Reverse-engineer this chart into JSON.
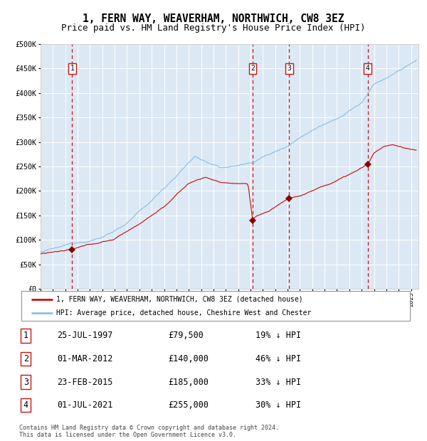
{
  "title": "1, FERN WAY, WEAVERHAM, NORTHWICH, CW8 3EZ",
  "subtitle": "Price paid vs. HM Land Registry's House Price Index (HPI)",
  "title_fontsize": 10.5,
  "subtitle_fontsize": 9,
  "background_color": "#dce9f5",
  "plot_bg_color": "#dce9f5",
  "grid_color": "#ffffff",
  "hpi_color": "#8bbfe8",
  "price_color": "#cc1111",
  "marker_color": "#880000",
  "vline_color": "#cc1111",
  "ylim": [
    0,
    500000
  ],
  "xstart": 1995.0,
  "xend": 2025.6,
  "sales": [
    {
      "num": 1,
      "year": 1997.56,
      "price": 79500
    },
    {
      "num": 2,
      "year": 2012.17,
      "price": 140000
    },
    {
      "num": 3,
      "year": 2015.14,
      "price": 185000
    },
    {
      "num": 4,
      "year": 2021.5,
      "price": 255000
    }
  ],
  "legend_label_red": "1, FERN WAY, WEAVERHAM, NORTHWICH, CW8 3EZ (detached house)",
  "legend_label_blue": "HPI: Average price, detached house, Cheshire West and Chester",
  "footer": "Contains HM Land Registry data © Crown copyright and database right 2024.\nThis data is licensed under the Open Government Licence v3.0.",
  "table_rows": [
    [
      "1",
      "25-JUL-1997",
      "£79,500",
      "19% ↓ HPI"
    ],
    [
      "2",
      "01-MAR-2012",
      "£140,000",
      "46% ↓ HPI"
    ],
    [
      "3",
      "23-FEB-2015",
      "£185,000",
      "33% ↓ HPI"
    ],
    [
      "4",
      "01-JUL-2021",
      "£255,000",
      "30% ↓ HPI"
    ]
  ]
}
